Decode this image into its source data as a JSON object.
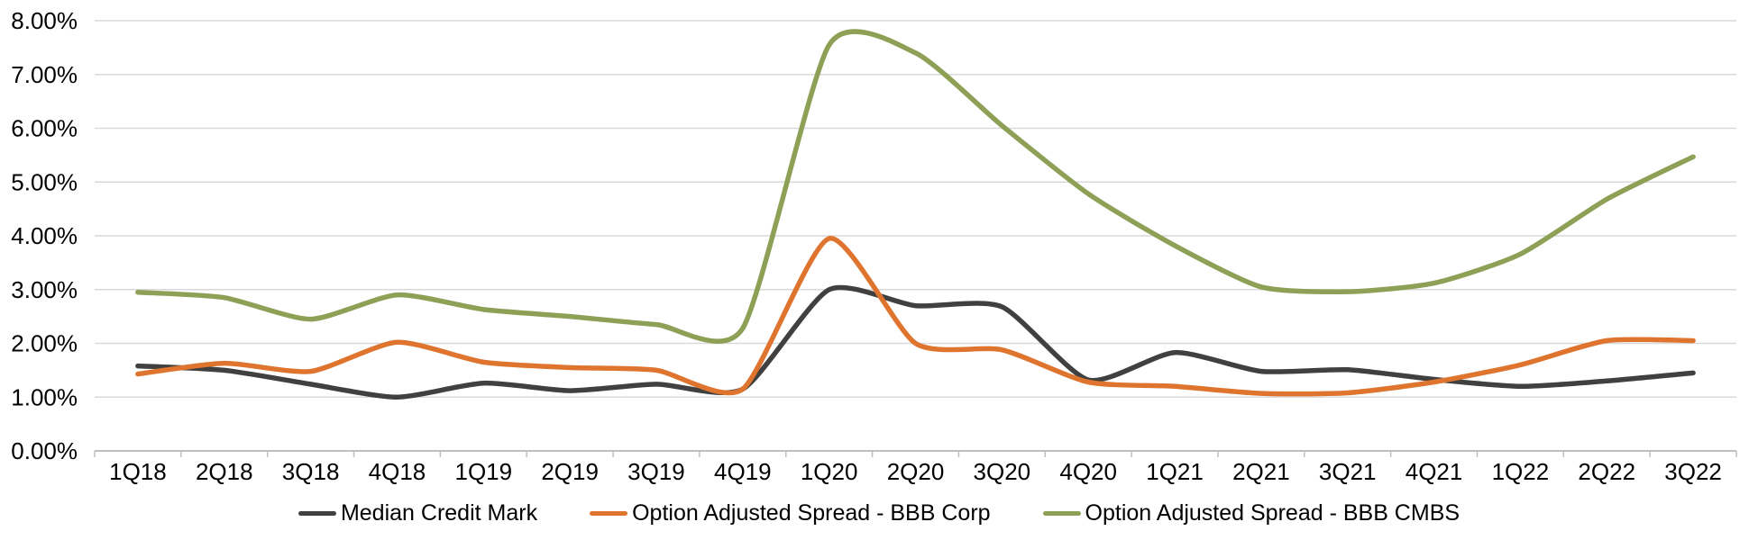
{
  "chart_data": {
    "type": "line",
    "title": "",
    "smooth": true,
    "grid": true,
    "legend_position": "bottom",
    "categories": [
      "1Q18",
      "2Q18",
      "3Q18",
      "4Q18",
      "1Q19",
      "2Q19",
      "3Q19",
      "4Q19",
      "1Q20",
      "2Q20",
      "3Q20",
      "4Q20",
      "1Q21",
      "2Q21",
      "3Q21",
      "4Q21",
      "1Q22",
      "2Q22",
      "3Q22"
    ],
    "series": [
      {
        "name": "Median Credit Mark",
        "color": "#404040",
        "values": [
          1.58,
          1.5,
          1.24,
          1.0,
          1.26,
          1.12,
          1.24,
          1.15,
          3.0,
          2.7,
          2.68,
          1.32,
          1.83,
          1.48,
          1.51,
          1.33,
          1.2,
          1.3,
          1.45
        ]
      },
      {
        "name": "Option Adjusted Spread - BBB Corp",
        "color": "#DE742E",
        "values": [
          1.43,
          1.63,
          1.48,
          2.02,
          1.65,
          1.55,
          1.5,
          1.15,
          3.95,
          2.0,
          1.88,
          1.28,
          1.2,
          1.07,
          1.08,
          1.28,
          1.6,
          2.05,
          2.05
        ]
      },
      {
        "name": "Option Adjusted Spread - BBB CMBS",
        "color": "#8EA056",
        "values": [
          2.95,
          2.85,
          2.45,
          2.9,
          2.63,
          2.5,
          2.35,
          2.28,
          7.55,
          7.4,
          6.05,
          4.78,
          3.82,
          3.05,
          2.96,
          3.12,
          3.66,
          4.68,
          5.47
        ]
      }
    ],
    "y_axis": {
      "min": 0,
      "max": 8,
      "step": 1,
      "tick_labels": [
        "0.00%",
        "1.00%",
        "2.00%",
        "3.00%",
        "4.00%",
        "5.00%",
        "6.00%",
        "7.00%",
        "8.00%"
      ]
    },
    "x_axis": {
      "tick_labels": [
        "1Q18",
        "2Q18",
        "3Q18",
        "4Q18",
        "1Q19",
        "2Q19",
        "3Q19",
        "4Q19",
        "1Q20",
        "2Q20",
        "3Q20",
        "4Q20",
        "1Q21",
        "2Q21",
        "3Q21",
        "4Q21",
        "1Q22",
        "2Q22",
        "3Q22"
      ]
    }
  },
  "styles": {
    "background": "#FFFFFF",
    "gridline_color": "#D9D9D9",
    "axis_color": "#BFBFBF",
    "label_color": "#000000"
  }
}
